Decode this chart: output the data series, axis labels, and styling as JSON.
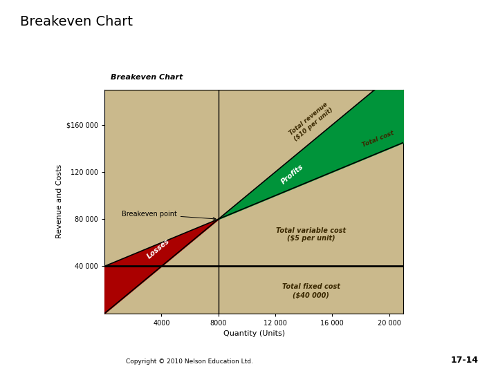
{
  "title_main": "Breakeven Chart",
  "chart_title": "Breakeven Chart",
  "bg_color": "#CAB98C",
  "fixed_cost": 40000,
  "variable_cost_per_unit": 5,
  "revenue_per_unit": 10,
  "breakeven_qty": 8000,
  "breakeven_val": 80000,
  "x_ticks": [
    4000,
    8000,
    12000,
    16000,
    20000
  ],
  "x_tick_labels": [
    "4000",
    "8000",
    "12 000",
    "16 000",
    "20 000"
  ],
  "y_ticks": [
    40000,
    80000,
    120000,
    160000
  ],
  "y_tick_labels": [
    "40 000",
    "80 000",
    "120 000",
    "$160 000"
  ],
  "xlabel": "Quantity (Units)",
  "ylabel": "Revenue and Costs",
  "loss_color": "#AA0000",
  "profit_color": "#00943A",
  "copyright_text": "Copyright © 2010 Nelson Education Ltd.",
  "page_text": "17-14",
  "x_max": 21000,
  "y_max": 190000
}
